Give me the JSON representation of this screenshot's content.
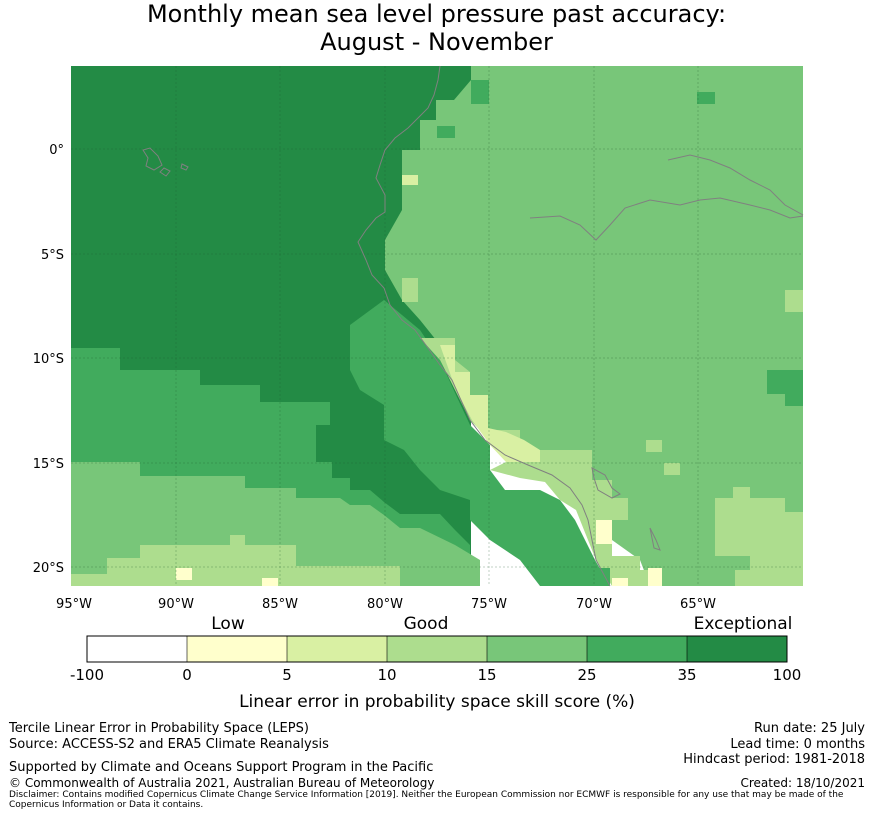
{
  "title": {
    "line1": "Monthly mean sea level pressure past accuracy:",
    "line2": "August - November"
  },
  "map": {
    "lon_labels": [
      "95°W",
      "90°W",
      "85°W",
      "80°W",
      "75°W",
      "70°W",
      "65°W"
    ],
    "lat_labels": [
      "0°",
      "5°S",
      "10°S",
      "15°S",
      "20°S"
    ],
    "colors": {
      "exceptional_dark": "#238b45",
      "very_good": "#41ab5d",
      "good_mid": "#78c679",
      "good_light": "#addd8e",
      "low_high": "#d9f0a3",
      "low_low": "#ffffcc",
      "none": "#ffffff",
      "coastline": "#808080"
    }
  },
  "colorbar": {
    "category_labels": [
      "Low",
      "Good",
      "Exceptional"
    ],
    "ticks": [
      "-100",
      "0",
      "5",
      "10",
      "15",
      "25",
      "35",
      "100"
    ],
    "title": "Linear error in probability space skill score (%)"
  },
  "footer": {
    "left1": "Tercile Linear Error in Probability Space (LEPS)",
    "left2": "Source: ACCESS-S2 and ERA5 Climate Reanalysis",
    "left3": "Supported by Climate and Oceans Support Program in the Pacific",
    "left4": "© Commonwealth of Australia 2021, Australian Bureau of Meteorology",
    "right1": "Run date: 25 July",
    "right2": "Lead time: 0 months",
    "right3": "Hindcast period: 1981-2018",
    "right4": "Created: 18/10/2021",
    "disclaimer": "Disclaimer: Contains modified Copernicus Climate Change Service Information [2019]. Neither the European Commission nor ECMWF is responsible for any use that may be made of the Copernicus Information or Data it contains."
  }
}
